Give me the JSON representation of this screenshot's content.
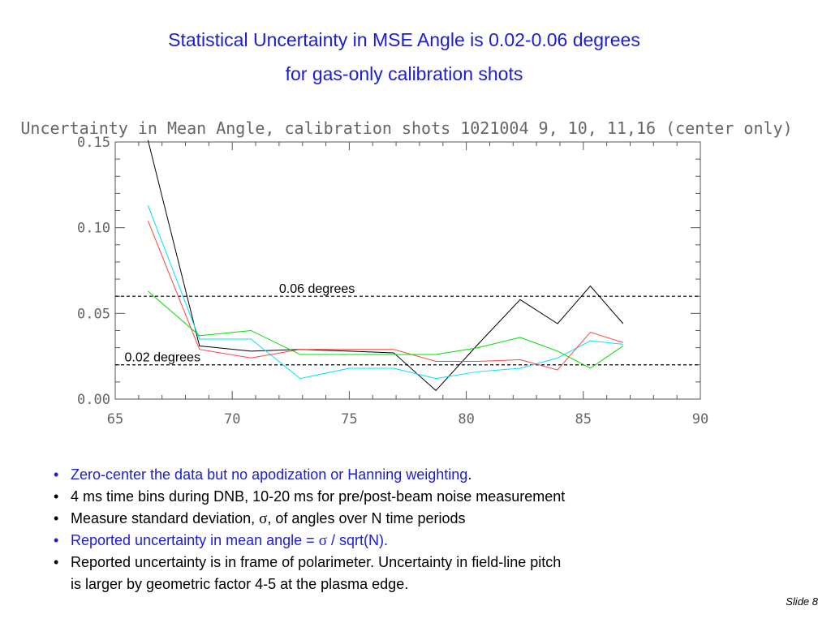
{
  "slide": {
    "title_line1": "Statistical Uncertainty in MSE Angle is 0.02-0.06 degrees",
    "title_line2": "for gas-only calibration shots",
    "slide_number": "Slide 8"
  },
  "bullets": [
    {
      "dot": "•",
      "text": "Zero-center the data but no apodization or Hanning weighting",
      "suffix": ".",
      "color": "#1c1cd6"
    },
    {
      "dot": "•",
      "text": "4 ms time bins during DNB, 10-20 ms for pre/post-beam noise measurement"
    },
    {
      "dot": "•",
      "pre": "Measure standard deviation, ",
      "symbol": "σ",
      "post": ",  of angles over N time periods"
    },
    {
      "dot": "•",
      "pre": "Reported uncertainty in mean angle  = ",
      "symbol": "σ",
      "post": " / sqrt(N).",
      "color": "#1c1cd6"
    },
    {
      "dot": "•",
      "text": "Reported uncertainty is in frame of polarimeter.  Uncertainty in field-line pitch",
      "continuation": "is larger by geometric factor 4-5 at the plasma edge."
    }
  ],
  "chart_data": {
    "type": "line",
    "title": "Uncertainty in Mean Angle, calibration shots 1021004 9, 10, 11,16 (center only)",
    "xlabel": "",
    "ylabel": "",
    "xlim": [
      65,
      90
    ],
    "ylim": [
      0.0,
      0.15
    ],
    "x_ticks": [
      "65",
      "70",
      "75",
      "80",
      "85",
      "90"
    ],
    "y_ticks": [
      "0.00",
      "0.05",
      "0.10",
      "0.15"
    ],
    "grid": false,
    "series": [
      {
        "color": "#000000",
        "x": [
          66.4,
          68.6,
          70.8,
          72.9,
          75.0,
          76.9,
          78.7,
          80.5,
          82.3,
          83.9,
          85.3,
          86.7
        ],
        "y": [
          0.151,
          0.031,
          0.028,
          0.029,
          0.028,
          0.027,
          0.005,
          0.032,
          0.058,
          0.044,
          0.066,
          0.044
        ]
      },
      {
        "color": "#00e0ff",
        "x": [
          66.4,
          68.6,
          70.8,
          72.9,
          75.0,
          76.9,
          78.7,
          80.5,
          82.3,
          83.9,
          85.3,
          86.7
        ],
        "y": [
          0.113,
          0.035,
          0.035,
          0.012,
          0.018,
          0.018,
          0.012,
          0.016,
          0.018,
          0.024,
          0.034,
          0.032
        ]
      },
      {
        "color": "#ff4444",
        "x": [
          66.4,
          68.6,
          70.8,
          72.9,
          75.0,
          76.9,
          78.7,
          80.5,
          82.3,
          83.9,
          85.3,
          86.7
        ],
        "y": [
          0.104,
          0.029,
          0.024,
          0.029,
          0.029,
          0.029,
          0.022,
          0.022,
          0.023,
          0.017,
          0.039,
          0.033
        ]
      },
      {
        "color": "#00dd00",
        "x": [
          66.4,
          68.6,
          70.8,
          72.9,
          75.0,
          76.9,
          78.7,
          80.5,
          82.3,
          83.9,
          85.3,
          86.7
        ],
        "y": [
          0.063,
          0.037,
          0.04,
          0.026,
          0.026,
          0.026,
          0.026,
          0.03,
          0.036,
          0.028,
          0.018,
          0.031
        ]
      }
    ],
    "reference_lines": [
      {
        "y": 0.06,
        "label": "0.06 degrees",
        "label_x": 72.0,
        "style": "dashed"
      },
      {
        "y": 0.02,
        "label": "0.02 degrees",
        "label_x": 65.4,
        "style": "dashed"
      }
    ]
  }
}
